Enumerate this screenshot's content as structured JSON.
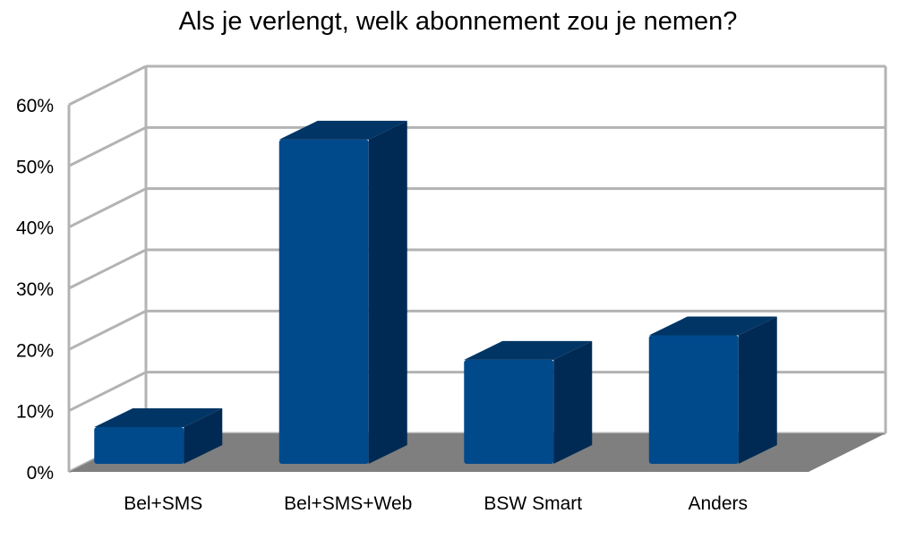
{
  "chart_data": {
    "type": "bar",
    "title": "Als je verlengt, welk abonnement zou je nemen?",
    "categories": [
      "Bel+SMS",
      "Bel+SMS+Web",
      "BSW Smart",
      "Anders"
    ],
    "values": [
      6,
      53,
      17,
      21
    ],
    "value_unit": "%",
    "ylim": [
      0,
      60
    ],
    "yticks": [
      "0%",
      "10%",
      "20%",
      "30%",
      "40%",
      "50%",
      "60%"
    ],
    "xlabel": "",
    "ylabel": "",
    "grid": true,
    "style": "3d",
    "legend": "none",
    "colors": {
      "bar_front": "#004a8c",
      "bar_side": "#002a54",
      "bar_top": "#003565",
      "floor": "#7f7f7f",
      "grid": "#b3b3b3"
    }
  }
}
